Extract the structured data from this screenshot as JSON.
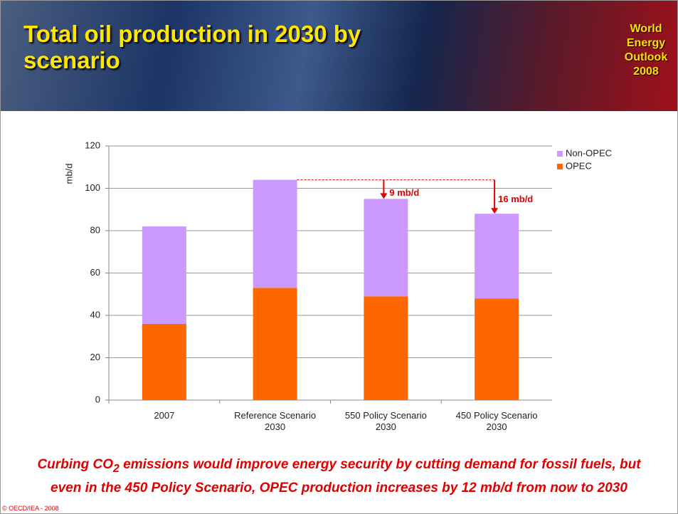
{
  "header": {
    "title": "Total oil production in 2030 by scenario",
    "logo": "World Energy Outlook 2008"
  },
  "chart_data": {
    "type": "stacked-bar",
    "ylabel": "mb/d",
    "categories": [
      "2007",
      "Reference Scenario 2030",
      "550 Policy Scenario 2030",
      "450 Policy Scenario 2030"
    ],
    "series": [
      {
        "name": "OPEC",
        "color": "#ff6600",
        "values": [
          36,
          53,
          49,
          48
        ]
      },
      {
        "name": "Non-OPEC",
        "color": "#cc99ff",
        "values": [
          46,
          51,
          46,
          40
        ]
      }
    ],
    "ylim": [
      0,
      120
    ],
    "yticks": [
      0,
      20,
      40,
      60,
      80,
      100,
      120
    ],
    "grid": true,
    "legend": "top-right",
    "annotations": [
      "9 mb/d",
      "16 mb/d"
    ],
    "annotation_color": "#e00000"
  },
  "caption": {
    "line1": [
      "Curbing CO",
      "2",
      " emissions would improve energy security by cutting demand for fossil fuels, but"
    ],
    "line2": "even in the 450 Policy Scenario, OPEC production increases by 12 mb/d from now to 2030"
  },
  "footer": "© OECD/IEA - 2008"
}
